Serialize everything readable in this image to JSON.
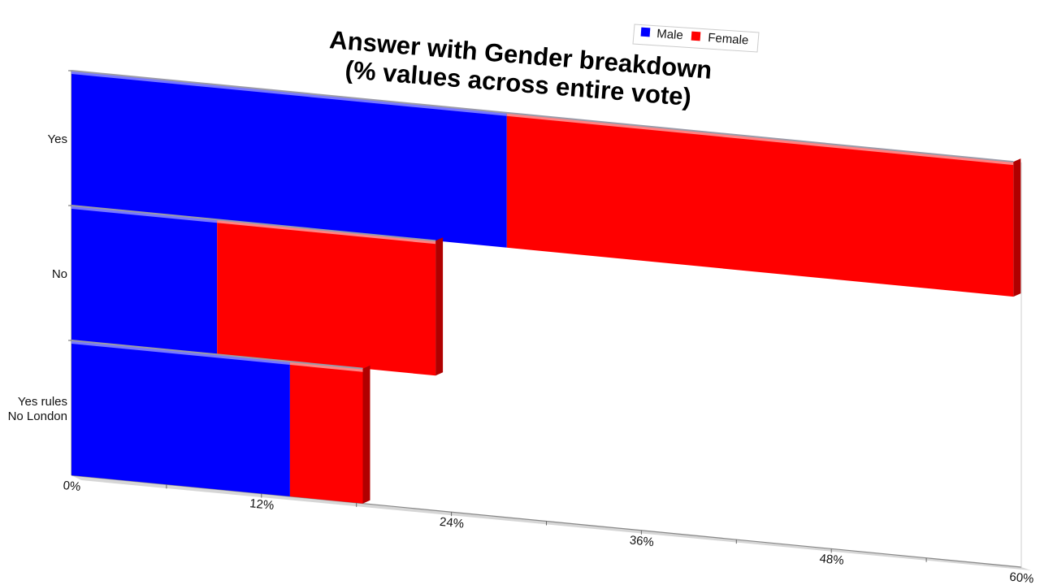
{
  "chart_data": {
    "type": "bar",
    "orientation": "horizontal",
    "stacked": true,
    "title": [
      "Answer with Gender breakdown",
      "(% values across entire vote)"
    ],
    "categories": [
      "Yes",
      "No",
      "Yes rules\nNo London"
    ],
    "series": [
      {
        "name": "Male",
        "color": "#0000ff",
        "values": [
          27.5,
          9.2,
          13.8
        ]
      },
      {
        "name": "Female",
        "color": "#ff0000",
        "values": [
          32.0,
          13.8,
          4.6
        ]
      }
    ],
    "xlim": [
      0,
      60
    ],
    "xticks": [
      "0%",
      "12%",
      "24%",
      "36%",
      "48%",
      "60%"
    ],
    "legend_position": "top-right",
    "grid": false
  }
}
